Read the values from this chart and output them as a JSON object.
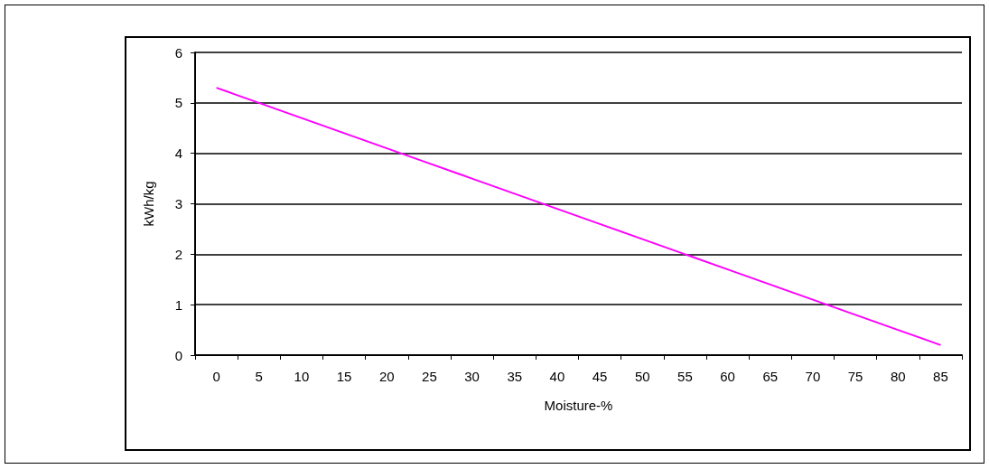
{
  "chart_data": {
    "type": "line",
    "xlabel": "Moisture-%",
    "ylabel": "kWh/kg",
    "categories": [
      "0",
      "5",
      "10",
      "15",
      "20",
      "25",
      "30",
      "35",
      "40",
      "45",
      "50",
      "55",
      "60",
      "65",
      "70",
      "75",
      "80",
      "85"
    ],
    "series": [
      {
        "color": "#ff00ff",
        "values": [
          5.3,
          5.0,
          4.7,
          4.4,
          4.1,
          3.8,
          3.5,
          3.2,
          2.9,
          2.6,
          2.3,
          2.0,
          1.7,
          1.4,
          1.1,
          0.8,
          0.5,
          0.2
        ]
      }
    ],
    "ylim": [
      0,
      6
    ],
    "yticks": [
      0,
      1,
      2,
      3,
      4,
      5,
      6
    ],
    "grid": "y",
    "marker": "none",
    "line_style": "solid"
  }
}
